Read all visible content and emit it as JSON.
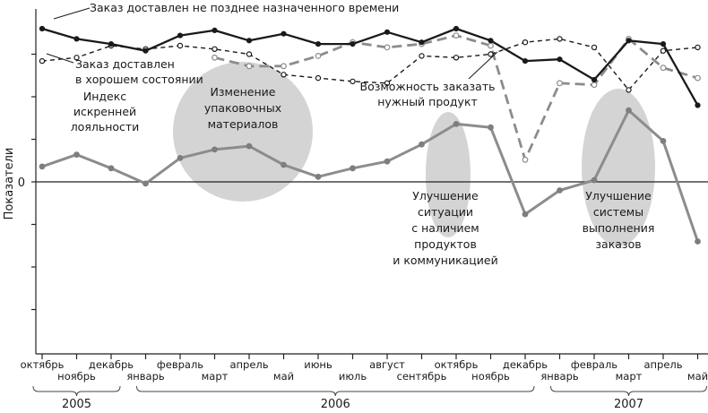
{
  "chart_data": {
    "type": "line",
    "ylabel": "Показатели",
    "y_zero_label": "0",
    "ylim": [
      -100,
      100
    ],
    "x": [
      "октябрь",
      "ноябрь",
      "декабрь",
      "январь",
      "февраль",
      "март",
      "апрель",
      "май",
      "июнь",
      "июль",
      "август",
      "сентябрь",
      "октябрь",
      "ноябрь",
      "декабрь",
      "январь",
      "февраль",
      "март",
      "апрель",
      "май"
    ],
    "years": [
      {
        "label": "2005",
        "from": 0,
        "to": 2
      },
      {
        "label": "2006",
        "from": 3,
        "to": 14
      },
      {
        "label": "2007",
        "from": 15,
        "to": 19
      }
    ],
    "series": [
      {
        "name": "Заказ доставлен не позднее назначенного времени",
        "style": "solid-black",
        "values": [
          90,
          84,
          81,
          77,
          86,
          89,
          83,
          87,
          81,
          81,
          88,
          82,
          90,
          83,
          71,
          72,
          60,
          83,
          81,
          45
        ]
      },
      {
        "name": "Заказ доставлен в хорошем состоянии",
        "style": "dashed-black-hollow",
        "values": [
          71,
          73,
          80,
          78,
          80,
          78,
          75,
          63,
          61,
          59,
          58,
          74,
          73,
          75,
          82,
          84,
          79,
          54,
          77,
          79
        ]
      },
      {
        "name": "Возможность заказать нужный продукт",
        "style": "dashed-gray-hollow",
        "values": [
          null,
          null,
          null,
          null,
          null,
          73,
          68,
          68,
          74,
          82,
          79,
          81,
          86,
          80,
          13,
          58,
          57,
          84,
          67,
          61
        ]
      },
      {
        "name": "Индекс искренней лояльности",
        "style": "solid-gray",
        "values": [
          9,
          16,
          8,
          -1,
          14,
          19,
          21,
          10,
          3,
          8,
          12,
          22,
          34,
          32,
          -19,
          -5,
          1,
          42,
          24,
          -35
        ]
      }
    ],
    "annotations": [
      {
        "text": [
          "Изменение",
          "упаковочных",
          "материалов"
        ]
      },
      {
        "text": [
          "Улучшение",
          "ситуации",
          "с наличием",
          "продуктов",
          "и коммуникацией"
        ]
      },
      {
        "text": [
          "Улучшение",
          "системы",
          "выполнения",
          "заказов"
        ]
      }
    ]
  }
}
